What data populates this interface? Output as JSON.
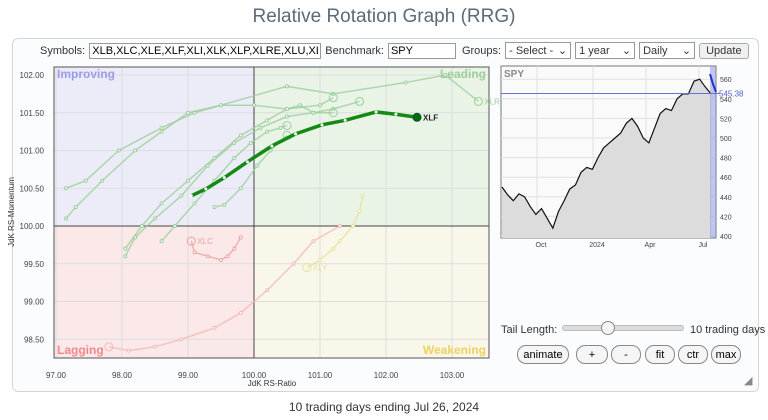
{
  "title": "Relative Rotation Graph (RRG)",
  "toolbar": {
    "symbols_label": "Symbols:",
    "symbols_value": "XLB,XLC,XLE,XLF,XLI,XLK,XLP,XLRE,XLU,XLV,XLY",
    "benchmark_label": "Benchmark:",
    "benchmark_value": "SPY",
    "groups_label": "Groups:",
    "groups_value": "- Select -",
    "period_value": "1 year",
    "interval_value": "Daily",
    "update_label": "Update"
  },
  "controls": {
    "tail_label": "Tail Length:",
    "tail_value": "10 trading days",
    "tail_level": 0.2,
    "buttons": [
      "animate",
      "+",
      "-",
      "fit",
      "ctr",
      "max"
    ]
  },
  "caption": "10 trading days ending Jul 26, 2024",
  "chart_data": [
    {
      "type": "scatter",
      "xlabel": "JdK RS-Ratio",
      "ylabel": "JdK RS-Momentum",
      "xlim": [
        97,
        103.5
      ],
      "ylim": [
        98.3,
        102.1
      ],
      "xticks": [
        "97.00",
        "98.00",
        "99.00",
        "100.00",
        "101.00",
        "102.00",
        "103.00"
      ],
      "yticks": [
        "98.50",
        "99.00",
        "99.50",
        "100.00",
        "100.50",
        "101.00",
        "101.50",
        "102.00"
      ],
      "quadrants": {
        "improving": "Improving",
        "leading": "Leading",
        "lagging": "Lagging",
        "weakening": "Weakening"
      },
      "colors": {
        "improving": "#ececf8",
        "leading": "#e9f3e6",
        "lagging": "#fbe8e8",
        "weakening": "#f9f7ea",
        "highlight": "#138a13"
      },
      "highlight": {
        "name": "XLF",
        "x": [
          99.05,
          99.27,
          99.55,
          99.9,
          100.27,
          100.63,
          101.03,
          101.38,
          101.85,
          102.15,
          102.47
        ],
        "y": [
          100.4,
          100.49,
          100.64,
          100.85,
          101.06,
          101.22,
          101.34,
          101.4,
          101.51,
          101.48,
          101.44
        ]
      },
      "faded": [
        {
          "name": "XLRE",
          "color": "#9ccf9c",
          "x": [
            97.15,
            97.45,
            97.95,
            98.6,
            99.1,
            99.5,
            100.5,
            101.2,
            102.3,
            102.9,
            103.4
          ],
          "y": [
            100.5,
            100.6,
            101.0,
            101.3,
            101.5,
            101.6,
            101.85,
            101.75,
            101.9,
            102.0,
            101.65
          ]
        },
        {
          "name": "",
          "color": "#9ccf9c",
          "x": [
            97.15,
            97.3,
            97.7,
            98.2,
            98.6,
            99.0,
            99.5,
            100.0,
            100.5,
            101.0,
            101.2
          ],
          "y": [
            100.1,
            100.25,
            100.6,
            101.0,
            101.25,
            101.5,
            101.6,
            101.6,
            101.55,
            101.6,
            101.7
          ]
        },
        {
          "name": "",
          "color": "#9ccf9c",
          "x": [
            98.05,
            98.2,
            98.5,
            98.9,
            99.3,
            99.7,
            100.1,
            100.5,
            100.9,
            101.2,
            101.6
          ],
          "y": [
            99.6,
            99.85,
            100.1,
            100.4,
            100.8,
            101.1,
            101.3,
            101.45,
            101.5,
            101.55,
            101.65
          ]
        },
        {
          "name": "",
          "color": "#9ccf9c",
          "x": [
            98.05,
            98.3,
            98.6,
            99.0,
            99.4,
            99.8,
            100.2,
            100.5,
            100.7,
            100.9,
            101.2
          ],
          "y": [
            99.7,
            100.0,
            100.3,
            100.6,
            100.9,
            101.2,
            101.4,
            101.55,
            101.6,
            101.5,
            101.5
          ]
        },
        {
          "name": "",
          "color": "#9ccf9c",
          "x": [
            98.6,
            98.8,
            99.1,
            99.4,
            99.7,
            99.95,
            100.2,
            100.4,
            100.5
          ],
          "y": [
            99.8,
            100.0,
            100.3,
            100.6,
            100.9,
            101.1,
            101.25,
            101.3,
            101.33
          ]
        },
        {
          "name": "",
          "color": "#9ccf9c",
          "x": [
            99.4,
            99.55,
            99.8,
            100.05,
            100.25,
            100.5
          ],
          "y": [
            100.25,
            100.28,
            100.5,
            100.8,
            101.0,
            101.2
          ]
        },
        {
          "name": "XLC",
          "color": "#f0a0a0",
          "x": [
            99.8,
            99.7,
            99.6,
            99.5,
            99.3,
            99.1,
            99.05
          ],
          "y": [
            99.85,
            99.7,
            99.6,
            99.55,
            99.6,
            99.65,
            99.8
          ]
        },
        {
          "name": "XLY",
          "color": "#e6e29a",
          "x": [
            101.65,
            101.6,
            101.5,
            101.3,
            101.2,
            101.0,
            100.8
          ],
          "y": [
            100.4,
            100.2,
            100.0,
            99.8,
            99.7,
            99.55,
            99.45
          ]
        },
        {
          "name": "",
          "color": "#f4b8b8",
          "x": [
            101.3,
            100.9,
            100.6,
            100.2,
            99.8,
            99.4,
            98.9,
            98.5,
            98.1,
            97.8
          ],
          "y": [
            100.0,
            99.8,
            99.5,
            99.15,
            98.85,
            98.65,
            98.5,
            98.4,
            98.35,
            98.4
          ]
        }
      ]
    },
    {
      "type": "area",
      "title": "SPY",
      "current_value": 545.38,
      "ylim": [
        400,
        565
      ],
      "yticks": [
        "400",
        "420",
        "440",
        "460",
        "480",
        "500",
        "520",
        "540",
        "560"
      ],
      "xticks": [
        "Oct",
        "2024",
        "Apr",
        "Jul"
      ],
      "values": [
        450,
        442,
        436,
        443,
        440,
        430,
        422,
        428,
        418,
        408,
        425,
        436,
        448,
        452,
        465,
        470,
        468,
        480,
        490,
        495,
        500,
        505,
        515,
        520,
        512,
        500,
        495,
        510,
        525,
        530,
        528,
        540,
        545,
        545,
        558,
        560,
        552,
        545
      ]
    }
  ]
}
